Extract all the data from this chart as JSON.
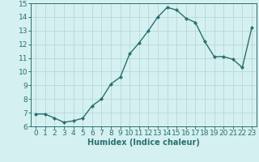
{
  "x": [
    0,
    1,
    2,
    3,
    4,
    5,
    6,
    7,
    8,
    9,
    10,
    11,
    12,
    13,
    14,
    15,
    16,
    17,
    18,
    19,
    20,
    21,
    22,
    23
  ],
  "y": [
    6.9,
    6.9,
    6.6,
    6.3,
    6.4,
    6.6,
    7.5,
    8.0,
    9.1,
    9.6,
    11.3,
    12.1,
    13.0,
    14.0,
    14.7,
    14.5,
    13.9,
    13.6,
    12.2,
    11.1,
    11.1,
    10.9,
    10.3,
    13.2
  ],
  "line_color": "#2a7070",
  "marker": "D",
  "marker_size": 2.0,
  "line_width": 1.0,
  "xlabel": "Humidex (Indice chaleur)",
  "xlabel_fontsize": 7,
  "xlabel_weight": "bold",
  "ylim": [
    6,
    15
  ],
  "xlim": [
    -0.5,
    23.5
  ],
  "yticks": [
    6,
    7,
    8,
    9,
    10,
    11,
    12,
    13,
    14,
    15
  ],
  "xticks": [
    0,
    1,
    2,
    3,
    4,
    5,
    6,
    7,
    8,
    9,
    10,
    11,
    12,
    13,
    14,
    15,
    16,
    17,
    18,
    19,
    20,
    21,
    22,
    23
  ],
  "bg_color": "#d5f0f0",
  "grid_color": "#b8d8d8",
  "tick_fontsize": 6.5,
  "fig_bg": "#d5f0f0",
  "spine_color": "#2a7070"
}
